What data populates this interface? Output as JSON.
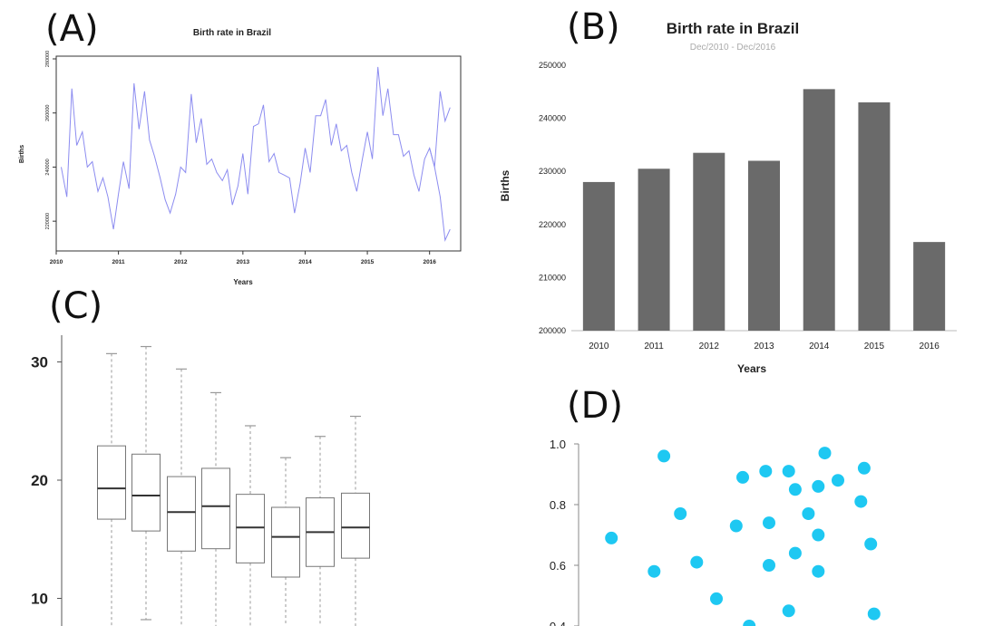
{
  "panels": {
    "a": "(A)",
    "b": "(B)",
    "c": "(C)",
    "d": "(D)"
  },
  "chart_data": [
    {
      "panel": "A",
      "type": "line",
      "title": "Birth rate in Brazil",
      "xlabel": "Years",
      "ylabel": "Births",
      "color": "#8c8cf0",
      "x_ticks": [
        "2010",
        "2011",
        "2012",
        "2013",
        "2014",
        "2015",
        "2016"
      ],
      "y_ticks": [
        "220000",
        "240000",
        "260000",
        "280000"
      ],
      "xlim": [
        2010,
        2016.5
      ],
      "ylim": [
        209000,
        281000
      ],
      "series": [
        {
          "x": [
            2010.08,
            2010.17,
            2010.25,
            2010.33,
            2010.42,
            2010.5,
            2010.58,
            2010.67,
            2010.75,
            2010.83,
            2010.92,
            2011.0,
            2011.08,
            2011.17,
            2011.25,
            2011.33,
            2011.42,
            2011.5,
            2011.58,
            2011.67,
            2011.75,
            2011.83,
            2011.92,
            2012.0,
            2012.08,
            2012.17,
            2012.25,
            2012.33,
            2012.42,
            2012.5,
            2012.58,
            2012.67,
            2012.75,
            2012.83,
            2012.92,
            2013.0,
            2013.08,
            2013.17,
            2013.25,
            2013.33,
            2013.42,
            2013.5,
            2013.58,
            2013.67,
            2013.75,
            2013.83,
            2013.92,
            2014.0,
            2014.08,
            2014.17,
            2014.25,
            2014.33,
            2014.42,
            2014.5,
            2014.58,
            2014.67,
            2014.75,
            2014.83,
            2014.92,
            2015.0,
            2015.08,
            2015.17,
            2015.25,
            2015.33,
            2015.42,
            2015.5,
            2015.58,
            2015.67,
            2015.75,
            2015.83,
            2015.92,
            2016.0,
            2016.08,
            2016.17,
            2016.25,
            2016.33
          ],
          "y": [
            240000,
            229000,
            269000,
            248000,
            253000,
            240000,
            242000,
            231000,
            236000,
            229000,
            217000,
            230000,
            242000,
            232000,
            271000,
            254000,
            268000,
            250000,
            244000,
            236000,
            228000,
            223000,
            230000,
            240000,
            238000,
            267000,
            249000,
            258000,
            241000,
            243000,
            238000,
            235000,
            239000,
            226000,
            233000,
            245000,
            230000,
            255000,
            256000,
            263000,
            242000,
            245000,
            238000,
            237000,
            236000,
            223000,
            234000,
            247000,
            238000,
            259000,
            259000,
            265000,
            248000,
            256000,
            246000,
            248000,
            238000,
            231000,
            243000,
            253000,
            243000,
            277000,
            259000,
            269000,
            252000,
            252000,
            244000,
            246000,
            237000,
            231000,
            243000,
            247000,
            240000,
            268000,
            257000,
            262000
          ],
          "tail_x": [
            2016.0,
            2016.08,
            2016.17,
            2016.25,
            2016.33
          ],
          "tail_y": [
            247000,
            240000,
            229000,
            213000,
            217000
          ]
        }
      ]
    },
    {
      "panel": "B",
      "type": "bar",
      "title": "Birth rate in Brazil",
      "subtitle": "Dec/2010 - Dec/2016",
      "xlabel": "Years",
      "ylabel": "Births",
      "color": "#6a6a6a",
      "categories": [
        "2010",
        "2011",
        "2012",
        "2013",
        "2014",
        "2015",
        "2016"
      ],
      "values": [
        228000,
        230500,
        233500,
        232000,
        245500,
        243000,
        216700
      ],
      "y_ticks": [
        "200000",
        "210000",
        "220000",
        "230000",
        "240000",
        "250000"
      ],
      "ylim": [
        200000,
        250000
      ]
    },
    {
      "panel": "C",
      "type": "box",
      "y_ticks": [
        "10",
        "20",
        "30"
      ],
      "ylim": [
        8,
        32
      ],
      "boxes": [
        {
          "whisker_high": 30.7,
          "q3": 22.9,
          "median": 19.3,
          "q1": 16.7
        },
        {
          "whisker_high": 31.3,
          "q3": 22.2,
          "median": 18.7,
          "q1": 15.7,
          "whisker_low": 8.2
        },
        {
          "whisker_high": 29.4,
          "q3": 20.3,
          "median": 17.3,
          "q1": 14.0
        },
        {
          "whisker_high": 27.4,
          "q3": 21.0,
          "median": 17.8,
          "q1": 14.2
        },
        {
          "whisker_high": 24.6,
          "q3": 18.8,
          "median": 16.0,
          "q1": 13.0
        },
        {
          "whisker_high": 21.9,
          "q3": 17.7,
          "median": 15.2,
          "q1": 11.8
        },
        {
          "whisker_high": 23.7,
          "q3": 18.5,
          "median": 15.6,
          "q1": 12.7
        },
        {
          "whisker_high": 25.4,
          "q3": 18.9,
          "median": 16.0,
          "q1": 13.4
        }
      ]
    },
    {
      "panel": "D",
      "type": "scatter",
      "color": "#1ec8f2",
      "y_ticks": [
        "0.4",
        "0.6",
        "0.8",
        "1.0"
      ],
      "ylim": [
        0.39,
        1.0
      ],
      "xlim": [
        0,
        1
      ],
      "points": [
        {
          "x": 0.1,
          "y": 0.69
        },
        {
          "x": 0.23,
          "y": 0.58
        },
        {
          "x": 0.26,
          "y": 0.96
        },
        {
          "x": 0.31,
          "y": 0.77
        },
        {
          "x": 0.36,
          "y": 0.61
        },
        {
          "x": 0.42,
          "y": 0.49
        },
        {
          "x": 0.48,
          "y": 0.73
        },
        {
          "x": 0.5,
          "y": 0.89
        },
        {
          "x": 0.52,
          "y": 0.4
        },
        {
          "x": 0.57,
          "y": 0.91
        },
        {
          "x": 0.58,
          "y": 0.74
        },
        {
          "x": 0.58,
          "y": 0.6
        },
        {
          "x": 0.64,
          "y": 0.91
        },
        {
          "x": 0.64,
          "y": 0.45
        },
        {
          "x": 0.66,
          "y": 0.85
        },
        {
          "x": 0.66,
          "y": 0.64
        },
        {
          "x": 0.7,
          "y": 0.77
        },
        {
          "x": 0.73,
          "y": 0.86
        },
        {
          "x": 0.73,
          "y": 0.7
        },
        {
          "x": 0.73,
          "y": 0.58
        },
        {
          "x": 0.75,
          "y": 0.97
        },
        {
          "x": 0.79,
          "y": 0.88
        },
        {
          "x": 0.86,
          "y": 0.81
        },
        {
          "x": 0.87,
          "y": 0.92
        },
        {
          "x": 0.89,
          "y": 0.67
        },
        {
          "x": 0.9,
          "y": 0.44
        }
      ]
    }
  ]
}
